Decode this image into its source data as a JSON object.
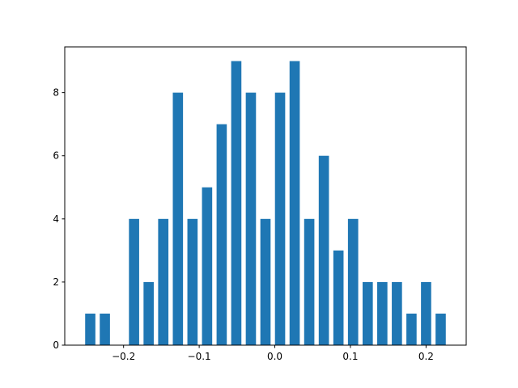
{
  "chart_data": {
    "type": "histogram",
    "bins": [
      -0.2537,
      -0.2344,
      -0.2151,
      -0.1958,
      -0.1765,
      -0.1572,
      -0.1378,
      -0.1185,
      -0.0992,
      -0.0799,
      -0.0606,
      -0.0413,
      -0.022,
      -0.0027,
      0.0166,
      0.0359,
      0.0552,
      0.0745,
      0.0938,
      0.1132,
      0.1325,
      0.1518,
      0.1711,
      0.1904,
      0.2097,
      0.229
    ],
    "values": [
      1,
      1,
      0,
      4,
      2,
      4,
      8,
      4,
      5,
      7,
      9,
      8,
      4,
      8,
      9,
      4,
      6,
      3,
      4,
      2,
      2,
      2,
      1,
      2,
      1
    ],
    "color": "#1f77b4",
    "xlim": [
      -0.2778,
      0.2531
    ],
    "ylim": [
      0,
      9.45
    ],
    "xticks": [
      {
        "value": -0.2,
        "label": "−0.2"
      },
      {
        "value": -0.1,
        "label": "−0.1"
      },
      {
        "value": 0,
        "label": "0.0"
      },
      {
        "value": 0.1,
        "label": "0.1"
      },
      {
        "value": 0.2,
        "label": "0.2"
      }
    ],
    "yticks": [
      0,
      2,
      4,
      6,
      8
    ]
  }
}
